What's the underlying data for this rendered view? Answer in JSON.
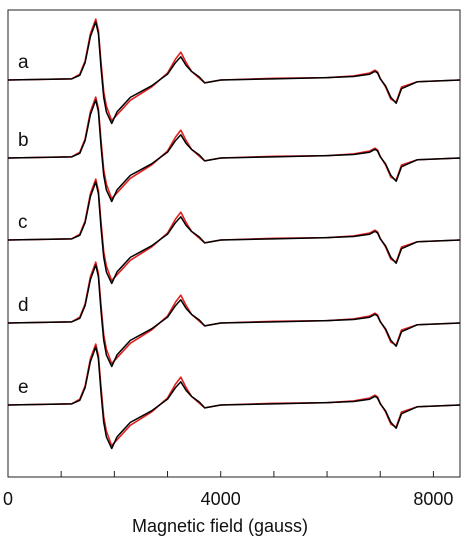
{
  "chart_data": {
    "type": "line",
    "title": "",
    "xlabel": "Magnetic field (gauss)",
    "ylabel": "",
    "xlim": [
      0,
      8500
    ],
    "x_ticks": [
      0,
      4000,
      8000
    ],
    "x_tick_labels": [
      "0",
      "4000",
      "8000"
    ],
    "minor_tick_step": 1000,
    "grid": false,
    "legend": "none",
    "panels": [
      {
        "label": "a"
      },
      {
        "label": "b"
      },
      {
        "label": "c"
      },
      {
        "label": "d"
      },
      {
        "label": "e"
      }
    ],
    "series": [
      {
        "color": "#000000",
        "x": [
          0,
          1200,
          1350,
          1450,
          1550,
          1650,
          1700,
          1750,
          1800,
          1850,
          1950,
          2050,
          2300,
          2700,
          3000,
          3150,
          3250,
          3350,
          3450,
          3600,
          3700,
          4000,
          5000,
          6000,
          6500,
          6800,
          6900,
          6950,
          7000,
          7100,
          7200,
          7300,
          7400,
          7700,
          8500
        ],
        "y": [
          0,
          0.02,
          0.08,
          0.3,
          0.75,
          1.0,
          0.8,
          0.2,
          -0.3,
          -0.55,
          -0.75,
          -0.55,
          -0.3,
          -0.1,
          0.1,
          0.3,
          0.4,
          0.25,
          0.15,
          0.05,
          -0.05,
          0,
          0.02,
          0.04,
          0.06,
          0.1,
          0.15,
          0.12,
          0.02,
          -0.1,
          -0.3,
          -0.4,
          -0.15,
          -0.03,
          0
        ]
      },
      {
        "color": "#e11f1f",
        "x": [
          0,
          1200,
          1350,
          1450,
          1550,
          1650,
          1700,
          1750,
          1800,
          1850,
          1950,
          2050,
          2300,
          2700,
          3000,
          3150,
          3250,
          3350,
          3450,
          3600,
          3700,
          4000,
          5000,
          6000,
          6500,
          6800,
          6900,
          6950,
          7000,
          7100,
          7200,
          7300,
          7400,
          7700,
          8500
        ],
        "y": [
          0,
          0.02,
          0.1,
          0.33,
          0.8,
          1.05,
          0.85,
          0.3,
          -0.2,
          -0.45,
          -0.7,
          -0.6,
          -0.35,
          -0.12,
          0.12,
          0.36,
          0.48,
          0.3,
          0.15,
          0.03,
          -0.05,
          0,
          0.03,
          0.04,
          0.07,
          0.12,
          0.17,
          0.14,
          0.03,
          -0.12,
          -0.33,
          -0.38,
          -0.12,
          -0.03,
          0
        ]
      }
    ]
  }
}
